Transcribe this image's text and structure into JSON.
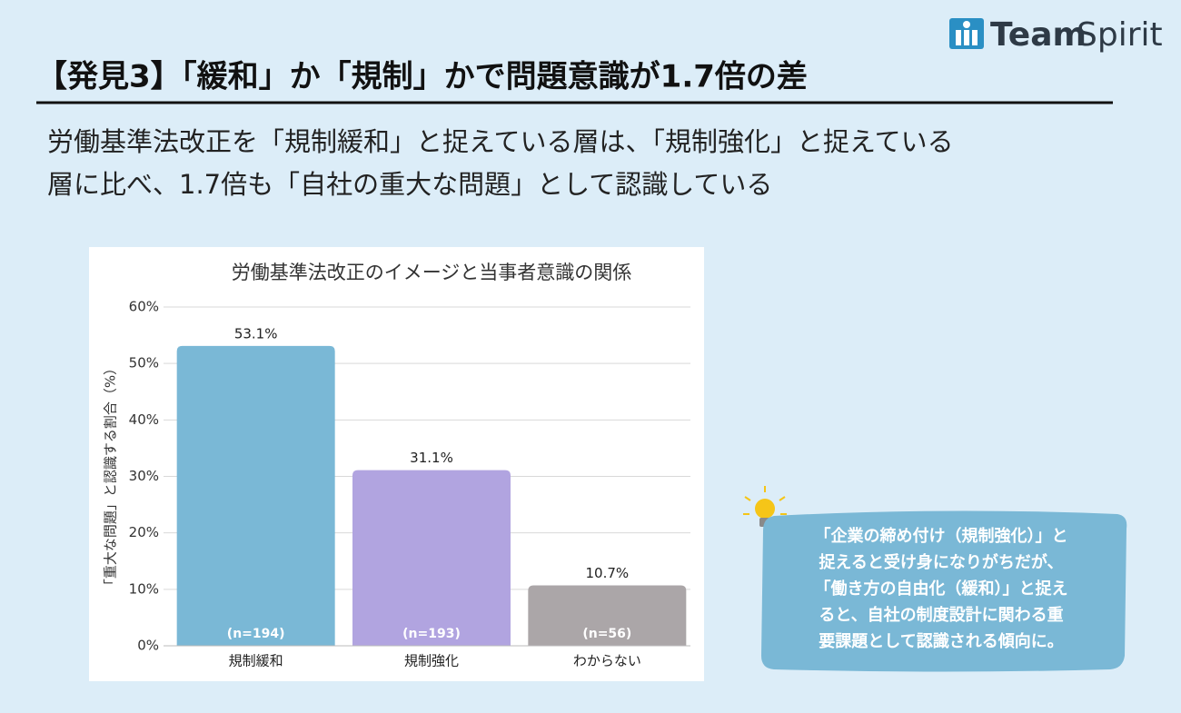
{
  "logo": [
    "Team",
    "Spirit"
  ],
  "title": "【発見3】「緩和」か「規制」かで問題意識が1.7倍の差",
  "lead": [
    "労働基準法改正を「規制緩和」と捉えている層は、「規制強化」と捉えている",
    "層に比べ、1.7倍も「自社の重大な問題」として認識している"
  ],
  "chart_data": {
    "type": "bar",
    "title": "労働基準法改正のイメージと当事者意識の関係",
    "y_label": "「重大な問題」と認識する割合（%）",
    "categories": [
      "規制緩和",
      "規制強化",
      "わからない"
    ],
    "values": [
      53.1,
      31.1,
      10.7
    ],
    "value_labels": [
      "53.1%",
      "31.1%",
      "10.7%"
    ],
    "sample_labels": [
      "(n=194)",
      "(n=193)",
      "(n=56)"
    ],
    "colors": [
      "#7ab8d6",
      "#b1a4e0",
      "#aba6a8"
    ],
    "ylim": [
      0,
      60
    ],
    "yticks": [
      {
        "value": 0,
        "label": "0%"
      },
      {
        "value": 10,
        "label": "10%"
      },
      {
        "value": 20,
        "label": "20%"
      },
      {
        "value": 30,
        "label": "30%"
      },
      {
        "value": 40,
        "label": "40%"
      },
      {
        "value": 50,
        "label": "50%"
      },
      {
        "value": 60,
        "label": "60%"
      }
    ],
    "grid": true
  },
  "callout": [
    "「企業の締め付け（規制強化）」と",
    "捉えると受け身になりがちだが、",
    "「働き方の自由化（緩和）」と捉え",
    "ると、自社の制度設計に関わる重",
    "要課題として認識される傾向に。"
  ]
}
